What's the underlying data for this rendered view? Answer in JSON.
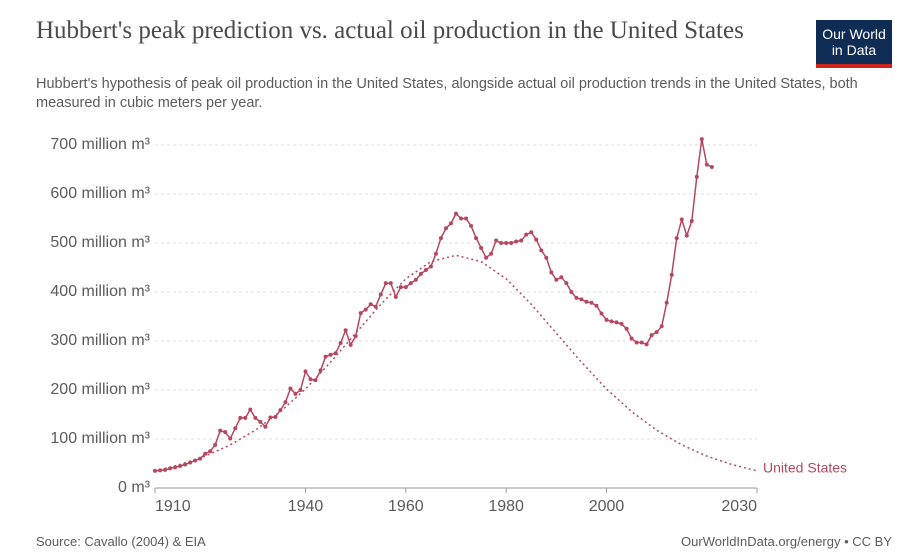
{
  "chart_data": {
    "type": "line",
    "title": "Hubbert's peak prediction vs. actual oil production in the United States",
    "subtitle": "Hubbert's hypothesis of peak oil production in the United States, alongside actual oil production trends in the United States, both measured in cubic meters per year.",
    "logo": [
      "Our World",
      "in Data"
    ],
    "source": "Source: Cavallo (2004) & EIA",
    "license": "OurWorldInData.org/energy • CC BY",
    "xlim": [
      1910,
      2030
    ],
    "xticks": [
      1910,
      1940,
      1960,
      1980,
      2000,
      2030
    ],
    "ylim": [
      0,
      700
    ],
    "yticks": [
      {
        "value": 0,
        "label": "0 m³"
      },
      {
        "value": 100,
        "label": "100 million m³"
      },
      {
        "value": 200,
        "label": "200 million m³"
      },
      {
        "value": 300,
        "label": "300 million m³"
      },
      {
        "value": 400,
        "label": "400 million m³"
      },
      {
        "value": 500,
        "label": "500 million m³"
      },
      {
        "value": 600,
        "label": "600 million m³"
      },
      {
        "value": 700,
        "label": "700 million m³"
      }
    ],
    "grid": true,
    "series": [
      {
        "color": "#b5485f",
        "style": "solid",
        "markers": true,
        "x": [
          1910,
          1911,
          1912,
          1913,
          1914,
          1915,
          1916,
          1917,
          1918,
          1919,
          1920,
          1921,
          1922,
          1923,
          1924,
          1925,
          1926,
          1927,
          1928,
          1929,
          1930,
          1931,
          1932,
          1933,
          1934,
          1935,
          1936,
          1937,
          1938,
          1939,
          1940,
          1941,
          1942,
          1943,
          1944,
          1945,
          1946,
          1947,
          1948,
          1949,
          1950,
          1951,
          1952,
          1953,
          1954,
          1955,
          1956,
          1957,
          1958,
          1959,
          1960,
          1961,
          1962,
          1963,
          1964,
          1965,
          1966,
          1967,
          1968,
          1969,
          1970,
          1971,
          1972,
          1973,
          1974,
          1975,
          1976,
          1977,
          1978,
          1979,
          1980,
          1981,
          1982,
          1983,
          1984,
          1985,
          1986,
          1987,
          1988,
          1989,
          1990,
          1991,
          1992,
          1993,
          1994,
          1995,
          1996,
          1997,
          1998,
          1999,
          2000,
          2001,
          2002,
          2003,
          2004,
          2005,
          2006,
          2007,
          2008,
          2009,
          2010,
          2011,
          2012,
          2013,
          2014,
          2015,
          2016,
          2017,
          2018,
          2019,
          2020,
          2021
        ],
        "values": [
          35,
          36,
          37,
          40,
          42,
          45,
          48,
          52,
          56,
          60,
          70,
          75,
          88,
          117,
          114,
          101,
          122,
          143,
          143,
          160,
          143,
          135,
          125,
          144,
          145,
          159,
          175,
          203,
          192,
          200,
          238,
          222,
          220,
          240,
          268,
          272,
          275,
          296,
          322,
          292,
          310,
          357,
          364,
          375,
          370,
          395,
          418,
          418,
          390,
          410,
          410,
          418,
          425,
          437,
          445,
          452,
          478,
          510,
          530,
          540,
          560,
          550,
          550,
          535,
          510,
          490,
          470,
          478,
          505,
          500,
          500,
          500,
          503,
          505,
          517,
          522,
          507,
          485,
          470,
          440,
          425,
          430,
          418,
          400,
          388,
          385,
          380,
          378,
          372,
          356,
          343,
          340,
          338,
          335,
          325,
          305,
          297,
          297,
          293,
          312,
          318,
          330,
          378,
          435,
          510,
          548,
          515,
          545,
          635,
          712,
          660,
          655
        ]
      },
      {
        "name": "United States",
        "color": "#b5485f",
        "style": "dotted",
        "markers": false,
        "x": [
          1910,
          1915,
          1920,
          1925,
          1930,
          1935,
          1940,
          1945,
          1950,
          1955,
          1960,
          1965,
          1970,
          1975,
          1980,
          1985,
          1990,
          1995,
          2000,
          2005,
          2010,
          2015,
          2020,
          2025,
          2030
        ],
        "values": [
          35,
          48,
          65,
          88,
          118,
          156,
          202,
          257,
          316,
          375,
          427,
          462,
          475,
          462,
          427,
          375,
          316,
          257,
          202,
          156,
          118,
          88,
          65,
          48,
          35
        ]
      }
    ]
  }
}
